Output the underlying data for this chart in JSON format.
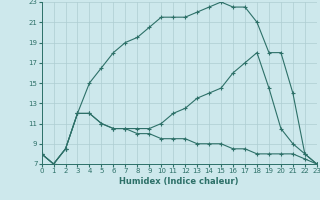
{
  "xlabel": "Humidex (Indice chaleur)",
  "bg_color": "#cde8ec",
  "grid_color": "#aecdd2",
  "line_color": "#2d7068",
  "xlim": [
    0,
    23
  ],
  "ylim": [
    7,
    23
  ],
  "xticks": [
    0,
    1,
    2,
    3,
    4,
    5,
    6,
    7,
    8,
    9,
    10,
    11,
    12,
    13,
    14,
    15,
    16,
    17,
    18,
    19,
    20,
    21,
    22,
    23
  ],
  "yticks": [
    7,
    9,
    11,
    13,
    15,
    17,
    19,
    21,
    23
  ],
  "line1_x": [
    0,
    1,
    2,
    3,
    4,
    5,
    6,
    7,
    8,
    9,
    10,
    11,
    12,
    13,
    14,
    15,
    16,
    17,
    18,
    19,
    20,
    21,
    22,
    23
  ],
  "line1_y": [
    8,
    7,
    8.5,
    12,
    15,
    16.5,
    18,
    19,
    19.5,
    20.5,
    21.5,
    21.5,
    21.5,
    22,
    22.5,
    23,
    22.5,
    22.5,
    21,
    18,
    18,
    14,
    8,
    7
  ],
  "line2_x": [
    0,
    1,
    2,
    3,
    4,
    5,
    6,
    7,
    8,
    9,
    10,
    11,
    12,
    13,
    14,
    15,
    16,
    17,
    18,
    19,
    20,
    21,
    22,
    23
  ],
  "line2_y": [
    8,
    7,
    8.5,
    12,
    12,
    11,
    10.5,
    10.5,
    10,
    10,
    9.5,
    9.5,
    9.5,
    9,
    9,
    9,
    8.5,
    8.5,
    8,
    8,
    8,
    8,
    7.5,
    7
  ],
  "line3_x": [
    0,
    1,
    2,
    3,
    4,
    5,
    6,
    7,
    8,
    9,
    10,
    11,
    12,
    13,
    14,
    15,
    16,
    17,
    18,
    19,
    20,
    21,
    22,
    23
  ],
  "line3_y": [
    8,
    7,
    8.5,
    12,
    12,
    11,
    10.5,
    10.5,
    10.5,
    10.5,
    11,
    12,
    12.5,
    13.5,
    14,
    14.5,
    16,
    17,
    18,
    14.5,
    10.5,
    9,
    8,
    7
  ]
}
